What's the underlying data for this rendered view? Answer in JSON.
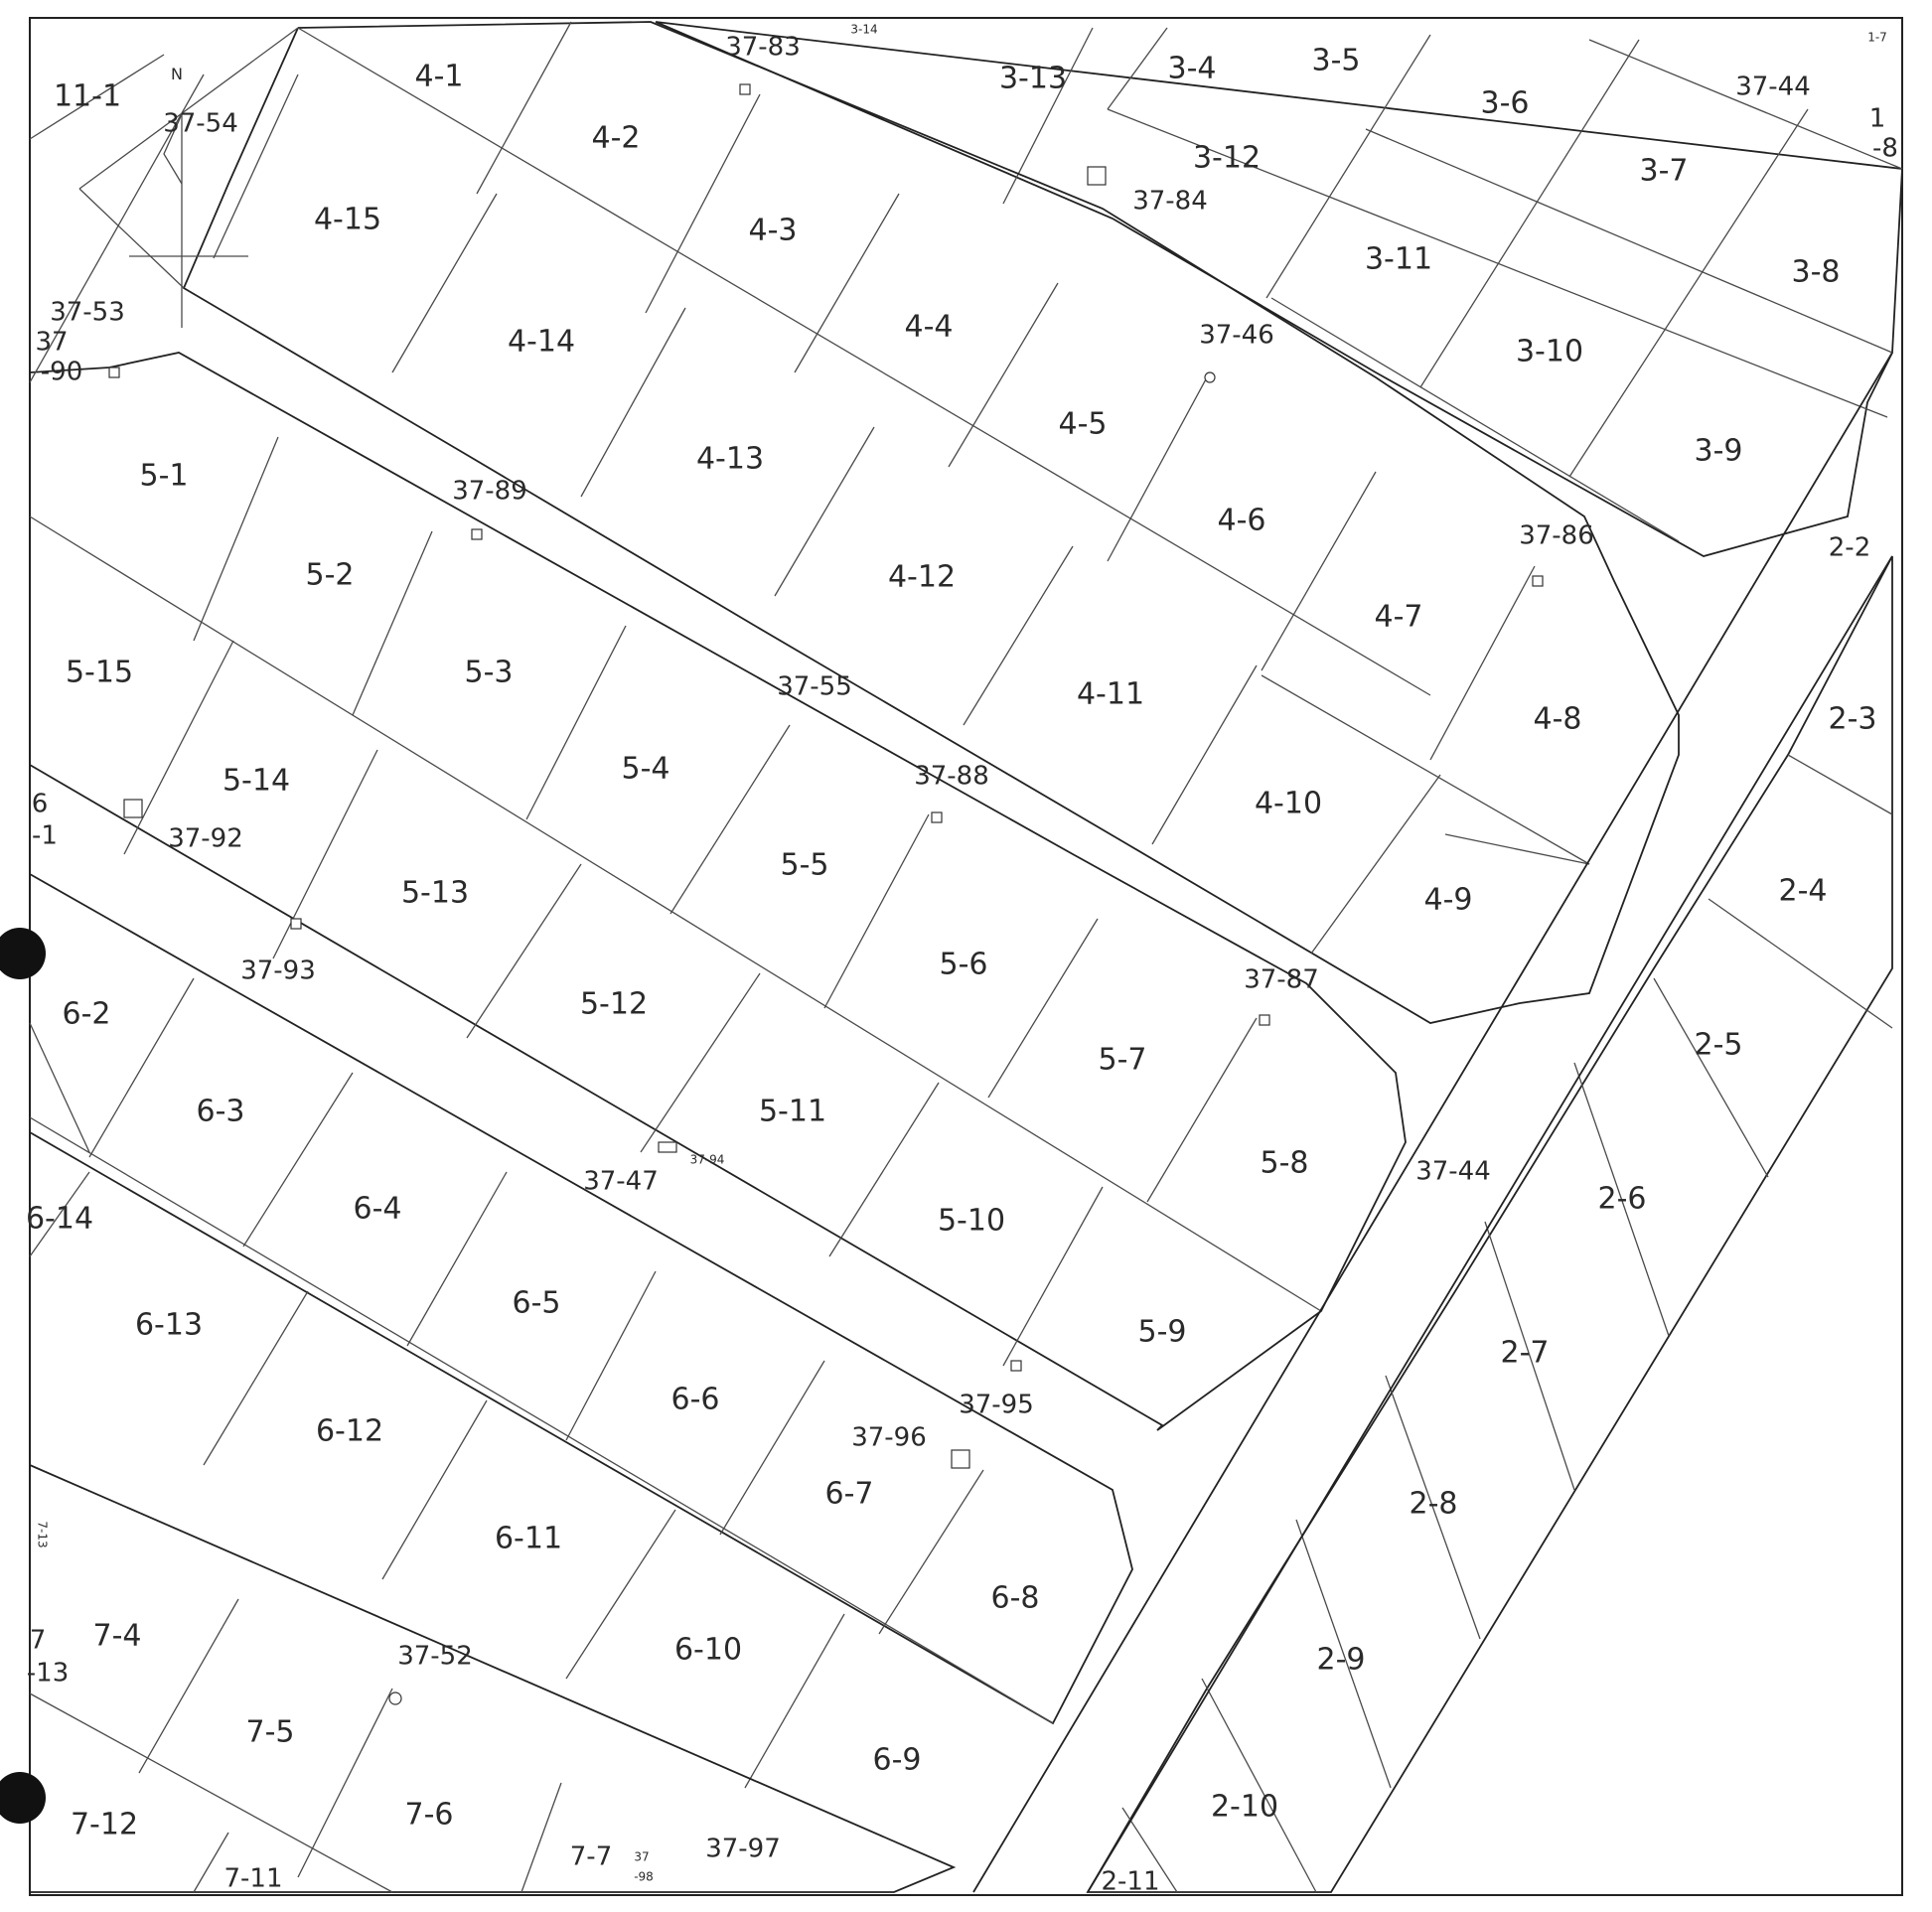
{
  "map": {
    "north_label": "N",
    "parcels": [
      {
        "id": "p_11_1",
        "label": "11-1"
      },
      {
        "id": "p_4_1",
        "label": "4-1"
      },
      {
        "id": "p_37_83",
        "label": "37-83"
      },
      {
        "id": "p_3_14",
        "label": "3-14"
      },
      {
        "id": "p_3_13",
        "label": "3-13"
      },
      {
        "id": "p_3_4",
        "label": "3-4"
      },
      {
        "id": "p_3_5",
        "label": "3-5"
      },
      {
        "id": "p_3_6",
        "label": "3-6"
      },
      {
        "id": "p_37_44_top",
        "label": "37-44"
      },
      {
        "id": "p_1_7",
        "label": "1-7"
      },
      {
        "id": "p_1_8a",
        "label": "1"
      },
      {
        "id": "p_1_8b",
        "label": "-8"
      },
      {
        "id": "p_37_54",
        "label": "37-54"
      },
      {
        "id": "p_4_2",
        "label": "4-2"
      },
      {
        "id": "p_3_12",
        "label": "3-12"
      },
      {
        "id": "p_37_84",
        "label": "37-84"
      },
      {
        "id": "p_3_7",
        "label": "3-7"
      },
      {
        "id": "p_4_15",
        "label": "4-15"
      },
      {
        "id": "p_4_3",
        "label": "4-3"
      },
      {
        "id": "p_3_11",
        "label": "3-11"
      },
      {
        "id": "p_3_8",
        "label": "3-8"
      },
      {
        "id": "p_37_53",
        "label": "37-53"
      },
      {
        "id": "p_37_90a",
        "label": "37"
      },
      {
        "id": "p_37_90b",
        "label": "-90"
      },
      {
        "id": "p_4_14",
        "label": "4-14"
      },
      {
        "id": "p_4_4",
        "label": "4-4"
      },
      {
        "id": "p_37_46",
        "label": "37-46"
      },
      {
        "id": "p_3_10",
        "label": "3-10"
      },
      {
        "id": "p_4_5",
        "label": "4-5"
      },
      {
        "id": "p_3_9",
        "label": "3-9"
      },
      {
        "id": "p_5_1",
        "label": "5-1"
      },
      {
        "id": "p_4_13",
        "label": "4-13"
      },
      {
        "id": "p_37_89",
        "label": "37-89"
      },
      {
        "id": "p_4_6",
        "label": "4-6"
      },
      {
        "id": "p_37_86",
        "label": "37-86"
      },
      {
        "id": "p_2_2",
        "label": "2-2"
      },
      {
        "id": "p_5_2",
        "label": "5-2"
      },
      {
        "id": "p_4_12",
        "label": "4-12"
      },
      {
        "id": "p_4_7",
        "label": "4-7"
      },
      {
        "id": "p_5_15",
        "label": "5-15"
      },
      {
        "id": "p_5_3",
        "label": "5-3"
      },
      {
        "id": "p_37_55",
        "label": "37-55"
      },
      {
        "id": "p_4_11",
        "label": "4-11"
      },
      {
        "id": "p_4_8",
        "label": "4-8"
      },
      {
        "id": "p_2_3",
        "label": "2-3"
      },
      {
        "id": "p_5_14",
        "label": "5-14"
      },
      {
        "id": "p_5_4",
        "label": "5-4"
      },
      {
        "id": "p_37_88",
        "label": "37-88"
      },
      {
        "id": "p_4_10",
        "label": "4-10"
      },
      {
        "id": "p_6_1a",
        "label": "6"
      },
      {
        "id": "p_6_1b",
        "label": "-1"
      },
      {
        "id": "p_37_92",
        "label": "37-92"
      },
      {
        "id": "p_5_5",
        "label": "5-5"
      },
      {
        "id": "p_5_13",
        "label": "5-13"
      },
      {
        "id": "p_2_4",
        "label": "2-4"
      },
      {
        "id": "p_4_9",
        "label": "4-9"
      },
      {
        "id": "p_5_6",
        "label": "5-6"
      },
      {
        "id": "p_37_93",
        "label": "37-93"
      },
      {
        "id": "p_37_87",
        "label": "37-87"
      },
      {
        "id": "p_6_2",
        "label": "6-2"
      },
      {
        "id": "p_5_12",
        "label": "5-12"
      },
      {
        "id": "p_5_7",
        "label": "5-7"
      },
      {
        "id": "p_2_5",
        "label": "2-5"
      },
      {
        "id": "p_6_3",
        "label": "6-3"
      },
      {
        "id": "p_5_11",
        "label": "5-11"
      },
      {
        "id": "p_37_94",
        "label": "37-94"
      },
      {
        "id": "p_5_8",
        "label": "5-8"
      },
      {
        "id": "p_37_44_mid",
        "label": "37-44"
      },
      {
        "id": "p_37_47",
        "label": "37-47"
      },
      {
        "id": "p_2_6",
        "label": "2-6"
      },
      {
        "id": "p_6_14",
        "label": "6-14"
      },
      {
        "id": "p_6_4",
        "label": "6-4"
      },
      {
        "id": "p_5_10",
        "label": "5-10"
      },
      {
        "id": "p_6_5",
        "label": "6-5"
      },
      {
        "id": "p_6_13",
        "label": "6-13"
      },
      {
        "id": "p_5_9",
        "label": "5-9"
      },
      {
        "id": "p_2_7",
        "label": "2-7"
      },
      {
        "id": "p_6_6",
        "label": "6-6"
      },
      {
        "id": "p_37_95",
        "label": "37-95"
      },
      {
        "id": "p_6_12",
        "label": "6-12"
      },
      {
        "id": "p_37_96",
        "label": "37-96"
      },
      {
        "id": "p_2_8",
        "label": "2-8"
      },
      {
        "id": "p_6_7",
        "label": "6-7"
      },
      {
        "id": "p_6_11",
        "label": "6-11"
      },
      {
        "id": "p_7_13_side",
        "label": "7-13"
      },
      {
        "id": "p_6_8",
        "label": "6-8"
      },
      {
        "id": "p_7_4",
        "label": "7-4"
      },
      {
        "id": "p_7_13a",
        "label": "7"
      },
      {
        "id": "p_7_13b",
        "label": "-13"
      },
      {
        "id": "p_37_52",
        "label": "37-52"
      },
      {
        "id": "p_6_10",
        "label": "6-10"
      },
      {
        "id": "p_2_9",
        "label": "2-9"
      },
      {
        "id": "p_7_5",
        "label": "7-5"
      },
      {
        "id": "p_6_9",
        "label": "6-9"
      },
      {
        "id": "p_2_10",
        "label": "2-10"
      },
      {
        "id": "p_7_12",
        "label": "7-12"
      },
      {
        "id": "p_7_6",
        "label": "7-6"
      },
      {
        "id": "p_37_97",
        "label": "37-97"
      },
      {
        "id": "p_7_7",
        "label": "7-7"
      },
      {
        "id": "p_37_98a",
        "label": "37"
      },
      {
        "id": "p_37_98b",
        "label": "-98"
      },
      {
        "id": "p_7_11",
        "label": "7-11"
      },
      {
        "id": "p_2_11",
        "label": "2-11"
      }
    ]
  }
}
